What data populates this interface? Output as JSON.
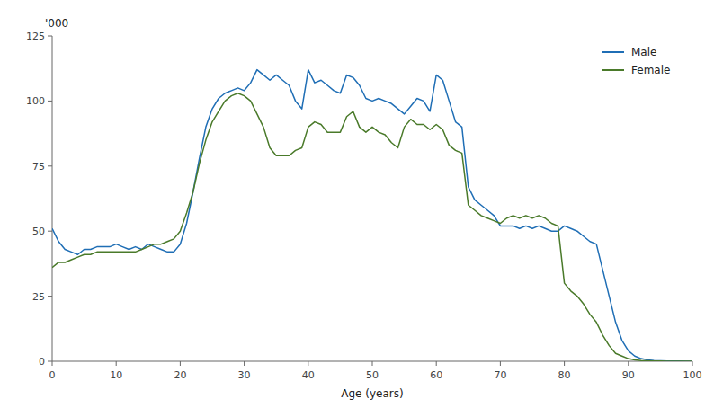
{
  "chart_data": {
    "type": "line",
    "x": [
      0,
      1,
      2,
      3,
      4,
      5,
      6,
      7,
      8,
      9,
      10,
      11,
      12,
      13,
      14,
      15,
      16,
      17,
      18,
      19,
      20,
      21,
      22,
      23,
      24,
      25,
      26,
      27,
      28,
      29,
      30,
      31,
      32,
      33,
      34,
      35,
      36,
      37,
      38,
      39,
      40,
      41,
      42,
      43,
      44,
      45,
      46,
      47,
      48,
      49,
      50,
      51,
      52,
      53,
      54,
      55,
      56,
      57,
      58,
      59,
      60,
      61,
      62,
      63,
      64,
      65,
      66,
      67,
      68,
      69,
      70,
      71,
      72,
      73,
      74,
      75,
      76,
      77,
      78,
      79,
      80,
      81,
      82,
      83,
      84,
      85,
      86,
      87,
      88,
      89,
      90,
      91,
      92,
      93,
      94,
      95,
      96,
      97,
      98,
      99,
      100
    ],
    "series": [
      {
        "name": "Male",
        "color": "#1f6eb5",
        "values": [
          51,
          46,
          43,
          42,
          41,
          43,
          43,
          44,
          44,
          44,
          45,
          44,
          43,
          44,
          43,
          45,
          44,
          43,
          42,
          42,
          45,
          53,
          65,
          78,
          90,
          97,
          101,
          103,
          104,
          105,
          104,
          107,
          112,
          110,
          108,
          110,
          108,
          106,
          100,
          97,
          112,
          107,
          108,
          106,
          104,
          103,
          110,
          109,
          106,
          101,
          100,
          101,
          100,
          99,
          97,
          95,
          98,
          101,
          100,
          96,
          110,
          108,
          100,
          92,
          90,
          67,
          62,
          60,
          58,
          56,
          52,
          52,
          52,
          51,
          52,
          51,
          52,
          51,
          50,
          50,
          52,
          51,
          50,
          48,
          46,
          45,
          35,
          25,
          15,
          8,
          4,
          2,
          1,
          0.5,
          0.3,
          0.2,
          0.1,
          0.1,
          0.05,
          0.02,
          0.01
        ]
      },
      {
        "name": "Female",
        "color": "#4a7a2a",
        "values": [
          36,
          38,
          38,
          39,
          40,
          41,
          41,
          42,
          42,
          42,
          42,
          42,
          42,
          42,
          43,
          44,
          45,
          45,
          46,
          47,
          50,
          57,
          65,
          76,
          85,
          92,
          96,
          100,
          102,
          103,
          102,
          100,
          95,
          90,
          82,
          79,
          79,
          79,
          81,
          82,
          90,
          92,
          91,
          88,
          88,
          88,
          94,
          96,
          90,
          88,
          90,
          88,
          87,
          84,
          82,
          90,
          93,
          91,
          91,
          89,
          91,
          89,
          83,
          81,
          80,
          60,
          58,
          56,
          55,
          54,
          53,
          55,
          56,
          55,
          56,
          55,
          56,
          55,
          53,
          52,
          30,
          27,
          25,
          22,
          18,
          15,
          10,
          6,
          3,
          2,
          1,
          0.5,
          0.3,
          0.2,
          0.1,
          0.05,
          0.02,
          0.01,
          0.005,
          0.002,
          0.001
        ]
      }
    ],
    "xlabel": "Age (years)",
    "ylabel": "'000",
    "xlim": [
      0,
      100
    ],
    "ylim": [
      0,
      125
    ],
    "xticks": [
      0,
      10,
      20,
      30,
      40,
      50,
      60,
      70,
      80,
      90,
      100
    ],
    "yticks": [
      0,
      25,
      50,
      75,
      100,
      125
    ],
    "legend": "upper right",
    "grid": false
  }
}
